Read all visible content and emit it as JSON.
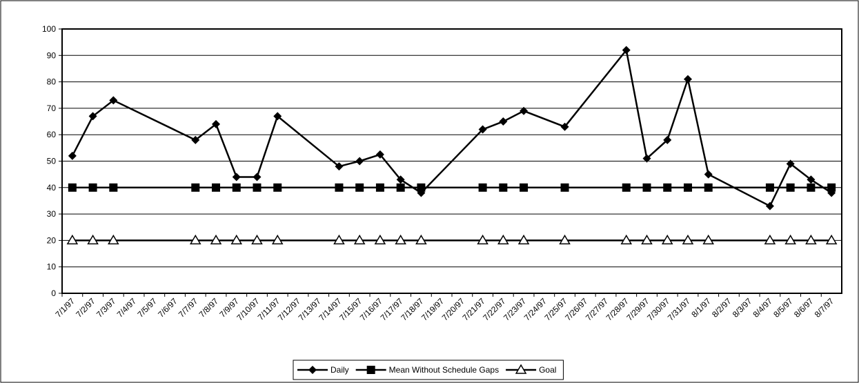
{
  "chart_data": {
    "type": "line",
    "categories": [
      "7/1/97",
      "7/2/97",
      "7/3/97",
      "7/4/97",
      "7/5/97",
      "7/6/97",
      "7/7/97",
      "7/8/97",
      "7/9/97",
      "7/10/97",
      "7/11/97",
      "7/12/97",
      "7/13/97",
      "7/14/97",
      "7/15/97",
      "7/16/97",
      "7/17/97",
      "7/18/97",
      "7/19/97",
      "7/20/97",
      "7/21/97",
      "7/22/97",
      "7/23/97",
      "7/24/97",
      "7/25/97",
      "7/26/97",
      "7/27/97",
      "7/28/97",
      "7/29/97",
      "7/30/97",
      "7/31/97",
      "8/1/97",
      "8/2/97",
      "8/3/97",
      "8/4/97",
      "8/5/97",
      "8/6/97",
      "8/7/97"
    ],
    "series": [
      {
        "name": "Daily",
        "color": "#000000",
        "marker": "diamond",
        "values": [
          52,
          67,
          73,
          null,
          null,
          null,
          58,
          64,
          44,
          44,
          67,
          null,
          null,
          48,
          50,
          52.5,
          43,
          38,
          null,
          null,
          62,
          65,
          69,
          null,
          63,
          null,
          null,
          92,
          51,
          58,
          81,
          45,
          null,
          null,
          33,
          49,
          43,
          38
        ]
      },
      {
        "name": "Mean Without Schedule Gaps",
        "color": "#000000",
        "marker": "square",
        "values": [
          40,
          40,
          40,
          null,
          null,
          null,
          40,
          40,
          40,
          40,
          40,
          null,
          null,
          40,
          40,
          40,
          40,
          40,
          null,
          null,
          40,
          40,
          40,
          null,
          40,
          null,
          null,
          40,
          40,
          40,
          40,
          40,
          null,
          null,
          40,
          40,
          40,
          40
        ]
      },
      {
        "name": "Goal",
        "color": "#000000",
        "marker": "triangle",
        "values": [
          20,
          20,
          20,
          null,
          null,
          null,
          20,
          20,
          20,
          20,
          20,
          null,
          null,
          20,
          20,
          20,
          20,
          20,
          null,
          null,
          20,
          20,
          20,
          null,
          20,
          null,
          null,
          20,
          20,
          20,
          20,
          20,
          null,
          null,
          20,
          20,
          20,
          20
        ]
      }
    ],
    "connect_gaps": true,
    "ylim": [
      0,
      100
    ],
    "yticks": [
      0,
      10,
      20,
      30,
      40,
      50,
      60,
      70,
      80,
      90,
      100
    ],
    "grid": true,
    "legend": "bottom"
  }
}
